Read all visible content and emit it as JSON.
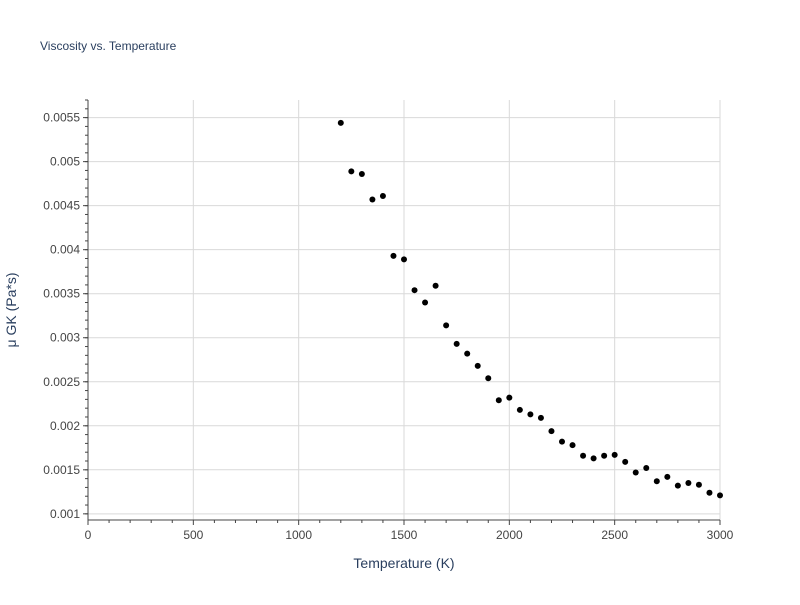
{
  "chart_data": {
    "type": "scatter",
    "title": "Viscosity vs. Temperature",
    "xlabel": "Temperature (K)",
    "ylabel": "μ GK (Pa*s)",
    "xlim": [
      0,
      3000
    ],
    "ylim": [
      0.00093,
      0.0057
    ],
    "x_ticks": [
      "0",
      "500",
      "1000",
      "1500",
      "2000",
      "2500",
      "3000"
    ],
    "x_tick_values": [
      0,
      500,
      1000,
      1500,
      2000,
      2500,
      3000
    ],
    "y_ticks": [
      "0.001",
      "0.0015",
      "0.002",
      "0.0025",
      "0.003",
      "0.0035",
      "0.004",
      "0.0045",
      "0.005",
      "0.0055"
    ],
    "y_tick_values": [
      0.001,
      0.0015,
      0.002,
      0.0025,
      0.003,
      0.0035,
      0.004,
      0.0045,
      0.005,
      0.0055
    ],
    "grid": true,
    "marker_color": "#000000",
    "series": [
      {
        "x": [
          1200,
          1250,
          1300,
          1350,
          1400,
          1450,
          1500,
          1550,
          1600,
          1650,
          1700,
          1750,
          1800,
          1850,
          1900,
          1950,
          2000,
          2050,
          2100,
          2150,
          2200,
          2250,
          2300,
          2350,
          2400,
          2450,
          2500,
          2550,
          2600,
          2650,
          2700,
          2750,
          2800,
          2850,
          2900,
          2950,
          3000
        ],
        "y": [
          0.00544,
          0.00489,
          0.00486,
          0.00457,
          0.00461,
          0.00393,
          0.00389,
          0.00354,
          0.0034,
          0.00359,
          0.00314,
          0.00293,
          0.00282,
          0.00268,
          0.00254,
          0.00229,
          0.00232,
          0.00218,
          0.00213,
          0.00209,
          0.00194,
          0.00182,
          0.00178,
          0.00166,
          0.00163,
          0.00166,
          0.00167,
          0.00159,
          0.00147,
          0.00152,
          0.00137,
          0.00142,
          0.00132,
          0.00135,
          0.00133,
          0.00124,
          0.00121
        ]
      }
    ]
  }
}
